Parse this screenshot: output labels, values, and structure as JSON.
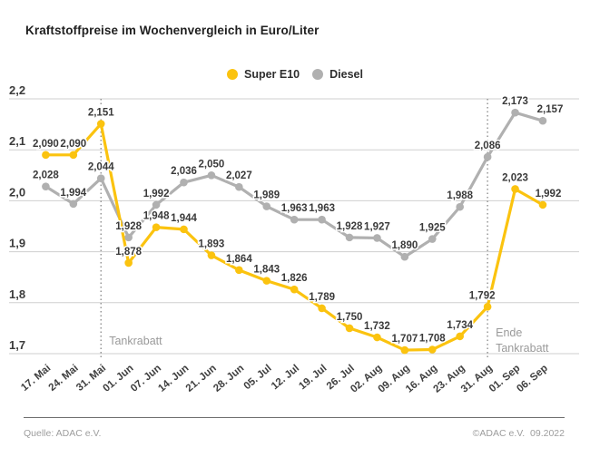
{
  "title": "Kraftstoffpreise im Wochenvergleich in Euro/Liter",
  "footer": {
    "source": "Quelle: ADAC e.V.",
    "copyright": "©ADAC e.V.  09.2022"
  },
  "colors": {
    "super_e10": "#FBC30F",
    "diesel": "#B0B0B0",
    "grid": "#CFCFCF",
    "event_line": "#8F8F8F",
    "value_label": "#3A3A3A",
    "annotation": "#9A9A9A"
  },
  "chart_data": {
    "type": "line",
    "title": "Kraftstoffpreise im Wochenvergleich in Euro/Liter",
    "unit": "Euro/Liter",
    "grid": true,
    "legend_position": "top-center",
    "ylim": [
      1.7,
      2.2
    ],
    "yticks": [
      {
        "value": 2.2,
        "label": "2,2"
      },
      {
        "value": 2.1,
        "label": "2,1"
      },
      {
        "value": 2.0,
        "label": "2,0"
      },
      {
        "value": 1.9,
        "label": "1,9"
      },
      {
        "value": 1.8,
        "label": "1,8"
      },
      {
        "value": 1.7,
        "label": "1,7"
      }
    ],
    "categories": [
      "17. Mai",
      "24. Mai",
      "31. Mai",
      "01. Jun",
      "07. Jun",
      "14. Jun",
      "21. Jun",
      "28. Jun",
      "05. Jul",
      "12. Jul",
      "19. Jul",
      "26. Jul",
      "02. Aug",
      "09. Aug",
      "16. Aug",
      "23. Aug",
      "31. Aug",
      "01. Sep",
      "06. Sep"
    ],
    "series": [
      {
        "name": "Super E10",
        "color": "#FBC30F",
        "values": [
          2.09,
          2.09,
          2.151,
          1.878,
          1.948,
          1.944,
          1.893,
          1.864,
          1.843,
          1.826,
          1.789,
          1.75,
          1.732,
          1.707,
          1.708,
          1.734,
          1.792,
          2.023,
          1.992
        ],
        "labels": [
          "2,090",
          "2,090",
          "2,151",
          "1,878",
          "1,948",
          "1,944",
          "1,893",
          "1,864",
          "1,843",
          "1,826",
          "1,789",
          "1,750",
          "1,732",
          "1,707",
          "1,708",
          "1,734",
          "1,792",
          "2,023",
          "1,992"
        ]
      },
      {
        "name": "Diesel",
        "color": "#B0B0B0",
        "values": [
          2.028,
          1.994,
          2.044,
          1.928,
          1.992,
          2.036,
          2.05,
          2.027,
          1.989,
          1.963,
          1.963,
          1.928,
          1.927,
          1.89,
          1.925,
          1.988,
          2.086,
          2.173,
          2.157
        ],
        "labels": [
          "2,028",
          "1,994",
          "2,044",
          "1,928",
          "1,992",
          "2,036",
          "2,050",
          "2,027",
          "1,989",
          "1,963",
          "1,963",
          "1,928",
          "1,927",
          "1,890",
          "1,925",
          "1,988",
          "2,086",
          "2,173",
          "2,157"
        ]
      }
    ],
    "annotations": [
      {
        "category": "31. Mai",
        "lines": [
          "Tankrabatt"
        ]
      },
      {
        "category": "31. Aug",
        "lines": [
          "Ende",
          "Tankrabatt"
        ]
      }
    ]
  }
}
